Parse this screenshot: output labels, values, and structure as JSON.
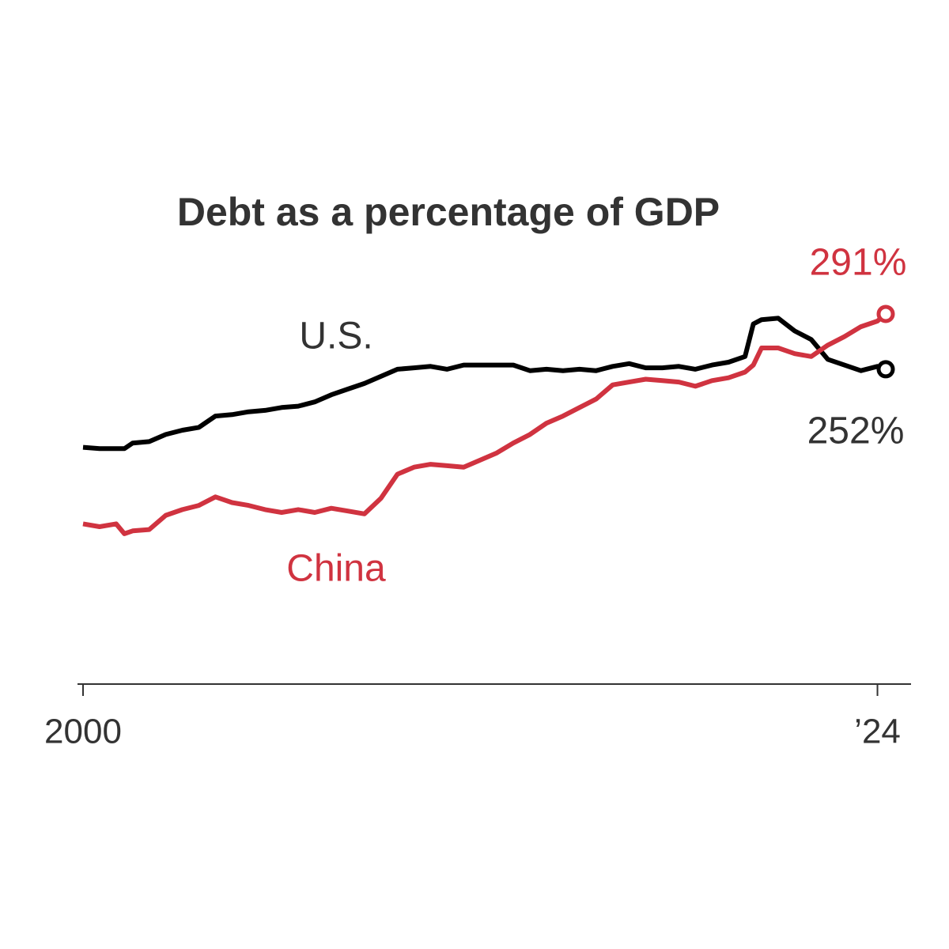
{
  "chart_data": {
    "type": "line",
    "title": "Debt as a percentage of GDP",
    "x": [
      2000,
      2000.5,
      2001,
      2001.25,
      2001.5,
      2002,
      2002.5,
      2003,
      2003.5,
      2004,
      2004.5,
      2005,
      2005.5,
      2006,
      2006.5,
      2007,
      2007.5,
      2008,
      2008.5,
      2009,
      2009.5,
      2010,
      2010.5,
      2011,
      2011.5,
      2012,
      2012.5,
      2013,
      2013.5,
      2014,
      2014.5,
      2015,
      2015.5,
      2016,
      2016.5,
      2017,
      2017.5,
      2018,
      2018.5,
      2019,
      2019.5,
      2020,
      2020.25,
      2020.5,
      2021,
      2021.5,
      2022,
      2022.5,
      2023,
      2023.5,
      2024,
      2024.25
    ],
    "series": [
      {
        "name": "U.S.",
        "color": "#000000",
        "values": [
          197,
          196,
          196,
          196,
          200,
          201,
          206,
          209,
          211,
          219,
          220,
          222,
          223,
          225,
          226,
          229,
          234,
          238,
          242,
          247,
          252,
          253,
          254,
          252,
          255,
          255,
          255,
          255,
          251,
          252,
          251,
          252,
          251,
          254,
          256,
          253,
          253,
          254,
          252,
          255,
          257,
          261,
          284,
          287,
          288,
          279,
          273,
          259,
          255,
          251,
          254,
          252
        ],
        "value_labels": [
          null,
          null,
          null,
          null,
          null,
          null,
          null,
          null,
          null,
          null,
          null,
          null,
          null,
          null,
          null,
          null,
          null,
          null,
          null,
          null,
          null,
          null,
          null,
          null,
          null,
          null,
          null,
          null,
          null,
          null,
          null,
          null,
          null,
          null,
          null,
          null,
          null,
          null,
          null,
          null,
          null,
          null,
          null,
          null,
          null,
          null,
          null,
          null,
          null,
          null,
          null,
          "252%"
        ]
      },
      {
        "name": "China",
        "color": "#d03340",
        "values": [
          143,
          141,
          143,
          136,
          138,
          139,
          149,
          153,
          156,
          162,
          158,
          156,
          153,
          151,
          153,
          151,
          154,
          152,
          150,
          161,
          178,
          183,
          185,
          184,
          183,
          188,
          193,
          200,
          206,
          214,
          219,
          225,
          231,
          241,
          243,
          245,
          244,
          243,
          240,
          244,
          246,
          250,
          255,
          267,
          267,
          263,
          261,
          269,
          275,
          282,
          286,
          291
        ],
        "value_labels": [
          null,
          null,
          null,
          null,
          null,
          null,
          null,
          null,
          null,
          null,
          null,
          null,
          null,
          null,
          null,
          null,
          null,
          null,
          null,
          null,
          null,
          null,
          null,
          null,
          null,
          null,
          null,
          null,
          null,
          null,
          null,
          null,
          null,
          null,
          null,
          null,
          null,
          null,
          null,
          null,
          null,
          null,
          null,
          null,
          null,
          null,
          null,
          null,
          null,
          null,
          null,
          "291%"
        ]
      }
    ],
    "xlim": [
      2000,
      2024.25
    ],
    "ylim": [
      30,
      320
    ],
    "xticks": [
      2000,
      {
        "value": 2024,
        "label": "’24"
      }
    ]
  }
}
